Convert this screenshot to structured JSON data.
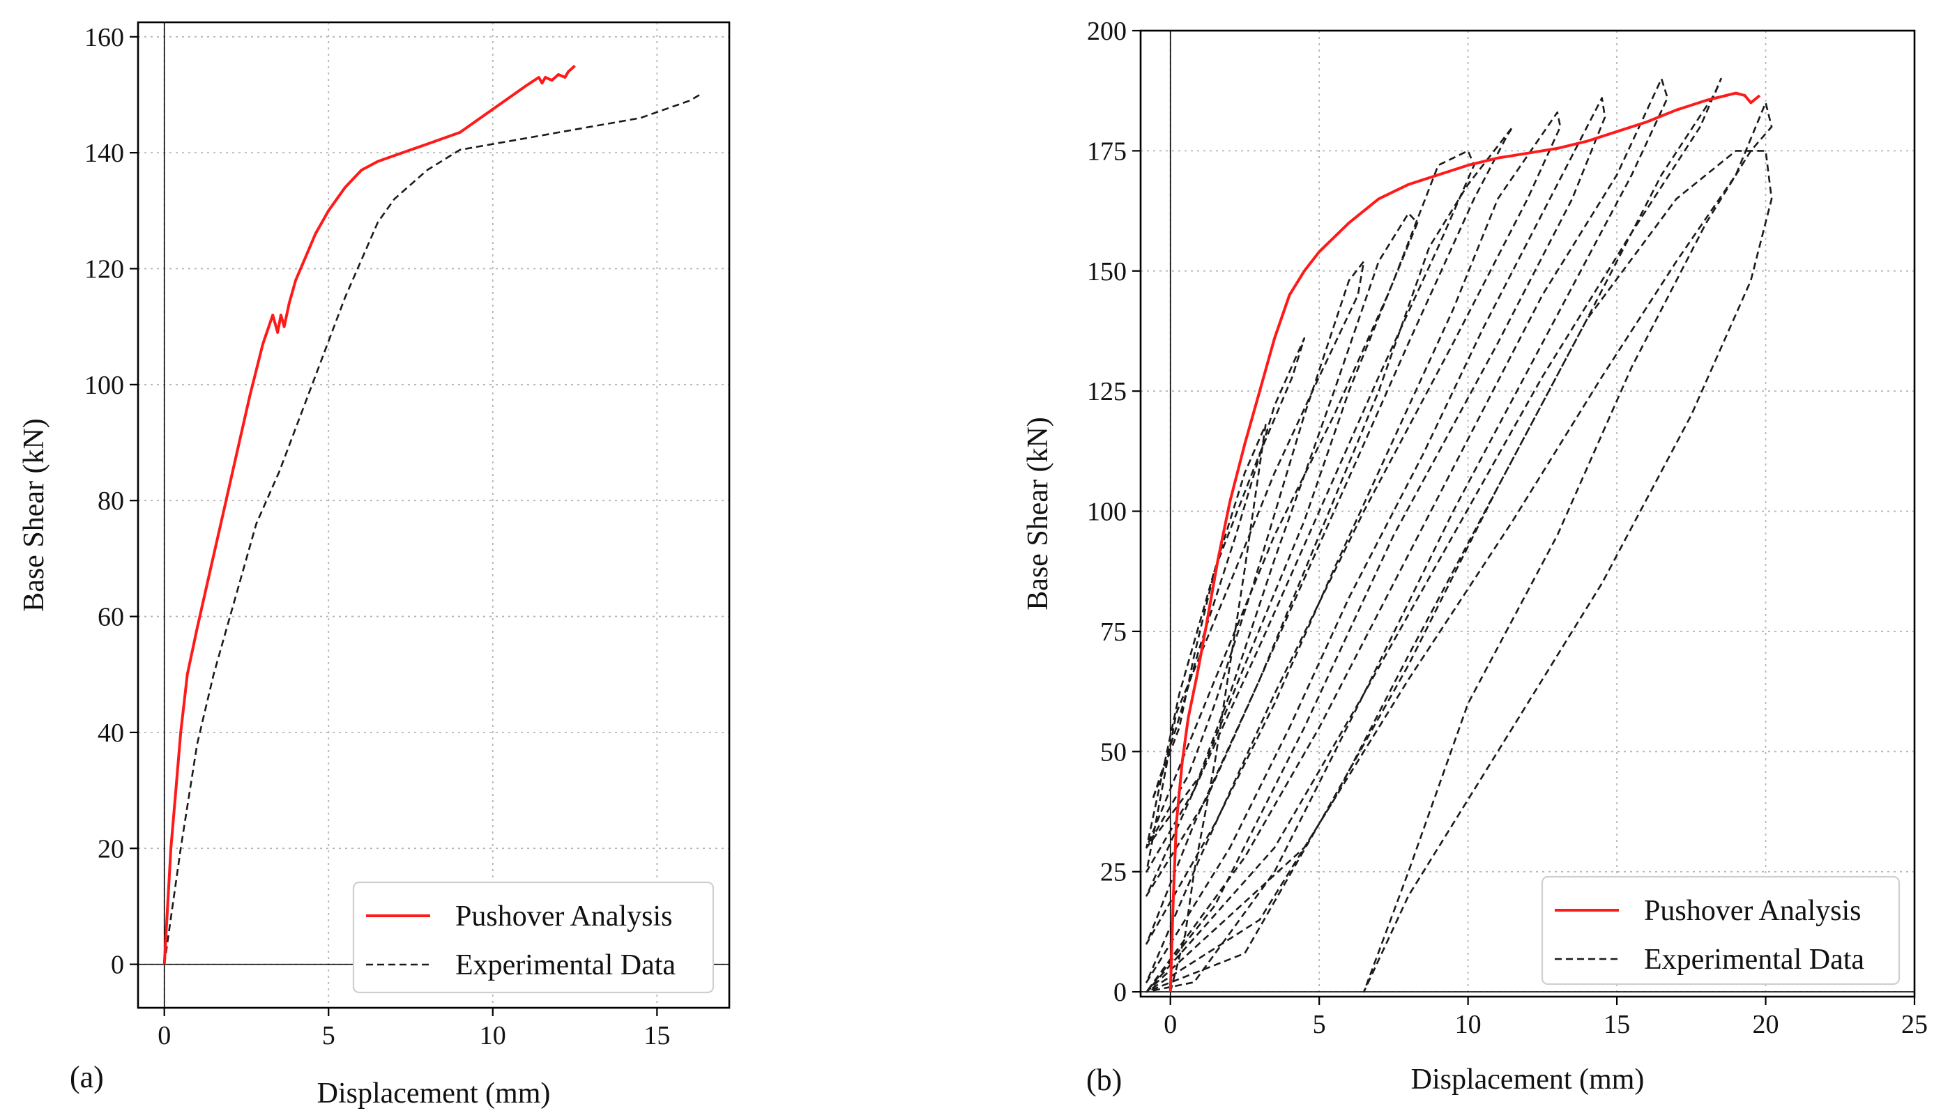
{
  "chart_data": [
    {
      "type": "line",
      "panel_label": "(a)",
      "xlabel": "Displacement (mm)",
      "ylabel": "Base Shear (kN)",
      "xlim": [
        -0.8,
        17.2
      ],
      "ylim": [
        -7.5,
        162.5
      ],
      "xticks": [
        0,
        5,
        10,
        15
      ],
      "yticks": [
        0,
        20,
        40,
        60,
        80,
        100,
        120,
        140,
        160
      ],
      "grid": true,
      "legend_position": "bottom-right",
      "series": [
        {
          "name": "Pushover Analysis",
          "color": "#ff1a1a",
          "style": "solid",
          "x": [
            0,
            0.1,
            0.2,
            0.35,
            0.5,
            0.7,
            1.0,
            1.4,
            1.8,
            2.2,
            2.6,
            3.0,
            3.3,
            3.45,
            3.55,
            3.65,
            3.8,
            4.0,
            4.3,
            4.6,
            5.0,
            5.5,
            6.0,
            6.5,
            7.0,
            7.5,
            8.0,
            8.5,
            9.0,
            9.5,
            10.0,
            10.5,
            11.0,
            11.4,
            11.5,
            11.6,
            11.8,
            12.0,
            12.2,
            12.3,
            12.5
          ],
          "y": [
            0,
            10,
            20,
            30,
            40,
            50,
            58,
            68,
            78,
            88,
            98,
            107,
            112,
            109,
            112,
            110,
            114,
            118,
            122,
            126,
            130,
            134,
            137,
            138.5,
            139.5,
            140.5,
            141.5,
            142.5,
            143.5,
            145.5,
            147.5,
            149.5,
            151.5,
            153,
            152,
            153,
            152.5,
            153.5,
            153,
            154,
            155
          ]
        },
        {
          "name": "Experimental Data",
          "color": "#1a1a1a",
          "style": "dashed",
          "x": [
            0,
            0.5,
            1.0,
            1.5,
            2.0,
            2.8,
            3.5,
            4.5,
            5.5,
            6.5,
            7.0,
            8.0,
            9.0,
            10.0,
            11.0,
            12.0,
            13.0,
            14.0,
            14.5,
            15.0,
            16.0,
            16.3
          ],
          "y": [
            0,
            20,
            38,
            50,
            60,
            76,
            85,
            100,
            115,
            128,
            132,
            137,
            140.5,
            141.5,
            142.5,
            143.5,
            144.5,
            145.5,
            146,
            147,
            149,
            150
          ]
        }
      ]
    },
    {
      "type": "line",
      "panel_label": "(b)",
      "xlabel": "Displacement (mm)",
      "ylabel": "Base Shear (kN)",
      "xlim": [
        -1,
        25
      ],
      "ylim": [
        -1,
        200
      ],
      "xticks": [
        0,
        5,
        10,
        15,
        20,
        25
      ],
      "yticks": [
        0,
        25,
        50,
        75,
        100,
        125,
        150,
        175,
        200
      ],
      "grid": true,
      "legend_position": "bottom-right",
      "series": [
        {
          "name": "Pushover Analysis",
          "color": "#ff1a1a",
          "style": "solid",
          "x": [
            0,
            0.1,
            0.2,
            0.4,
            0.6,
            0.9,
            1.2,
            1.6,
            2.0,
            2.5,
            3.0,
            3.5,
            4.0,
            4.5,
            5.0,
            6.0,
            7.0,
            8.0,
            9.0,
            10.0,
            11.0,
            12.0,
            13.0,
            14.0,
            15.0,
            16.0,
            17.0,
            18.0,
            19.0,
            19.3,
            19.5,
            19.8
          ],
          "y": [
            0,
            20,
            35,
            48,
            57,
            66,
            76,
            90,
            102,
            114,
            125,
            136,
            145,
            150,
            154,
            160,
            165,
            168,
            170,
            172,
            173.5,
            174.5,
            175.5,
            177,
            179,
            181,
            183.5,
            185.5,
            187,
            186.5,
            185,
            186.5
          ]
        },
        {
          "name": "Experimental Data",
          "color": "#1a1a1a",
          "style": "dashed",
          "x": [
            0,
            0.5,
            0.8,
            1.5,
            2.5,
            3.2,
            2.5,
            1.5,
            0.8,
            0.3,
            -0.6,
            0.2,
            1.0,
            2.2,
            3.5,
            4.5,
            4.1,
            3.0,
            1.5,
            0.3,
            -0.8,
            0.6,
            1.5,
            2.8,
            4.5,
            6.0,
            6.5,
            6.3,
            5.0,
            3.5,
            2.0,
            0.2,
            -0.8,
            0.8,
            2.0,
            3.5,
            5.5,
            7.0,
            8.0,
            8.3,
            7.3,
            5.5,
            3.5,
            1.5,
            -0.8,
            1.0,
            2.5,
            4.5,
            6.0,
            7.5,
            9.0,
            10.0,
            10.2,
            9.0,
            7.0,
            5.0,
            3.0,
            0.8,
            -0.8,
            1.2,
            3.0,
            5.0,
            7.0,
            8.7,
            10.0,
            11.5,
            11.3,
            10.2,
            8.0,
            5.5,
            3.0,
            0.8,
            -0.8,
            1.5,
            3.5,
            5.5,
            7.5,
            9.5,
            11.0,
            13.0,
            13.1,
            12.0,
            9.5,
            6.5,
            3.5,
            1.0,
            -0.8,
            2.0,
            4.0,
            6.0,
            8.5,
            10.5,
            12.5,
            14.5,
            14.6,
            13.5,
            11.0,
            7.5,
            4.5,
            1.5,
            -0.8,
            2.5,
            5.0,
            7.5,
            10.0,
            12.5,
            15.0,
            16.5,
            16.7,
            15.5,
            12.5,
            9.5,
            6.5,
            3.5,
            0.8,
            -0.8,
            3.5,
            6.5,
            9.5,
            12.5,
            15.5,
            17.8,
            18.5,
            18.3,
            16.5,
            14.0,
            11.0,
            8.0,
            5.0,
            2.5,
            -0.8,
            4.5,
            8.0,
            11.5,
            14.5,
            17.0,
            19.0,
            20.0,
            20.2,
            19.5,
            18.0,
            15.5,
            13.0,
            10.0,
            8.0,
            6.5,
            8.0,
            11.0,
            14.5,
            17.5,
            19.5,
            20.2,
            20.0,
            19.0,
            17.0,
            14.0,
            11.0,
            8.0,
            5.5,
            3.0,
            -0.8
          ],
          "y": [
            0,
            12,
            25,
            48,
            88,
            118,
            108,
            88,
            70,
            55,
            40,
            55,
            72,
            95,
            122,
            136,
            128,
            112,
            88,
            62,
            30,
            45,
            60,
            85,
            120,
            148,
            152,
            145,
            128,
            108,
            85,
            58,
            25,
            42,
            62,
            90,
            125,
            152,
            162,
            160,
            145,
            120,
            95,
            65,
            30,
            45,
            68,
            98,
            125,
            148,
            172,
            175,
            172,
            155,
            128,
            100,
            72,
            42,
            20,
            40,
            65,
            95,
            125,
            155,
            168,
            180,
            178,
            165,
            135,
            100,
            65,
            35,
            10,
            35,
            60,
            88,
            115,
            142,
            165,
            183,
            180,
            165,
            135,
            100,
            62,
            28,
            2,
            30,
            55,
            82,
            112,
            138,
            162,
            186,
            182,
            165,
            135,
            95,
            55,
            18,
            0,
            28,
            55,
            85,
            115,
            145,
            170,
            190,
            186,
            170,
            135,
            100,
            62,
            25,
            2,
            0,
            30,
            62,
            95,
            128,
            158,
            180,
            190,
            187,
            170,
            140,
            105,
            68,
            35,
            8,
            0,
            30,
            65,
            98,
            128,
            152,
            170,
            185,
            180,
            175,
            160,
            130,
            95,
            60,
            25,
            0,
            20,
            50,
            85,
            120,
            148,
            165,
            175,
            175,
            165,
            140,
            105,
            70,
            40,
            15,
            0
          ]
        }
      ]
    }
  ]
}
